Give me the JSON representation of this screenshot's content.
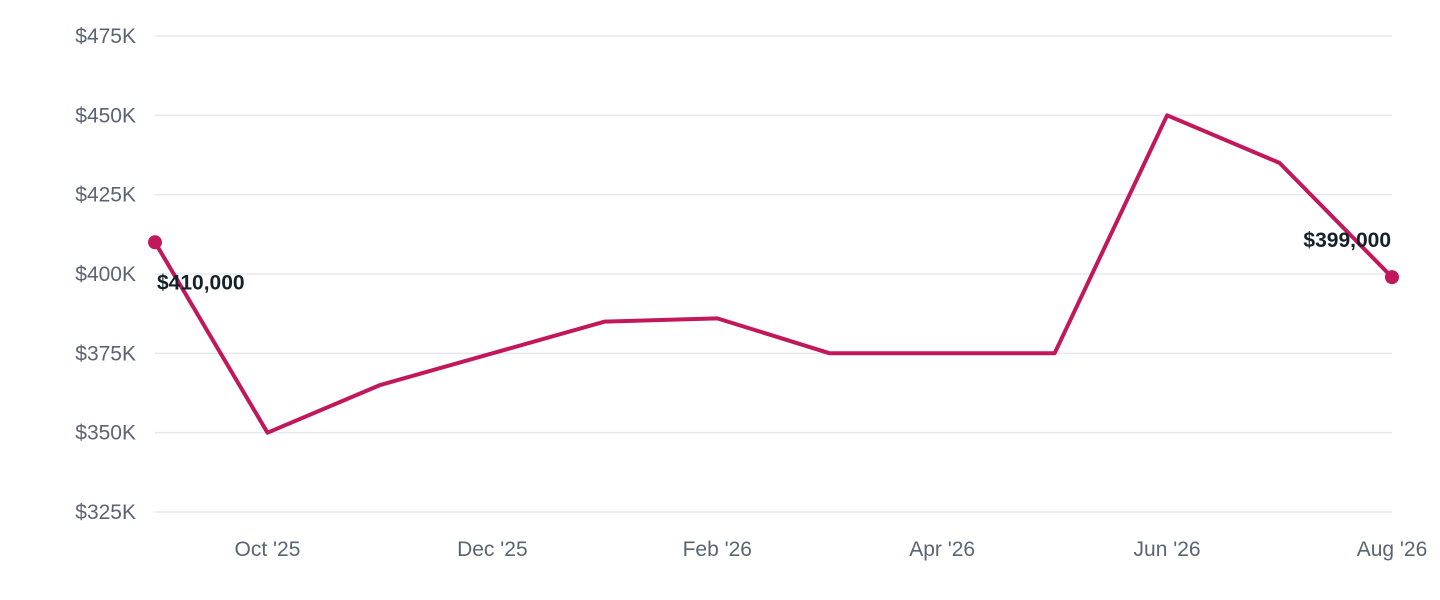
{
  "chart_data": {
    "type": "line",
    "title": "",
    "xlabel": "",
    "ylabel": "",
    "x": [
      "Sep '25",
      "Oct '25",
      "Nov '25",
      "Dec '25",
      "Jan '26",
      "Feb '26",
      "Mar '26",
      "Apr '26",
      "May '26",
      "Jun '26",
      "Jul '26",
      "Aug '26"
    ],
    "x_tick_labels": [
      "",
      "Oct '25",
      "",
      "Dec '25",
      "",
      "Feb '26",
      "",
      "Apr '26",
      "",
      "Jun '26",
      "",
      "Aug '26"
    ],
    "series": [
      {
        "values": [
          410000,
          350000,
          365000,
          375000,
          385000,
          386000,
          375000,
          375000,
          375000,
          450000,
          435000,
          399000
        ]
      }
    ],
    "ylim": [
      325000,
      475000
    ],
    "y_ticks": [
      325000,
      350000,
      375000,
      400000,
      425000,
      450000,
      475000
    ],
    "y_tick_labels": [
      "$325K",
      "$350K",
      "$375K",
      "$400K",
      "$425K",
      "$450K",
      "$475K"
    ],
    "grid": true,
    "line_color": "#c2185b",
    "data_labels": [
      {
        "index": 0,
        "text": "$410,000",
        "anchor": "start"
      },
      {
        "index": 11,
        "text": "$399,000",
        "anchor": "end"
      }
    ]
  }
}
